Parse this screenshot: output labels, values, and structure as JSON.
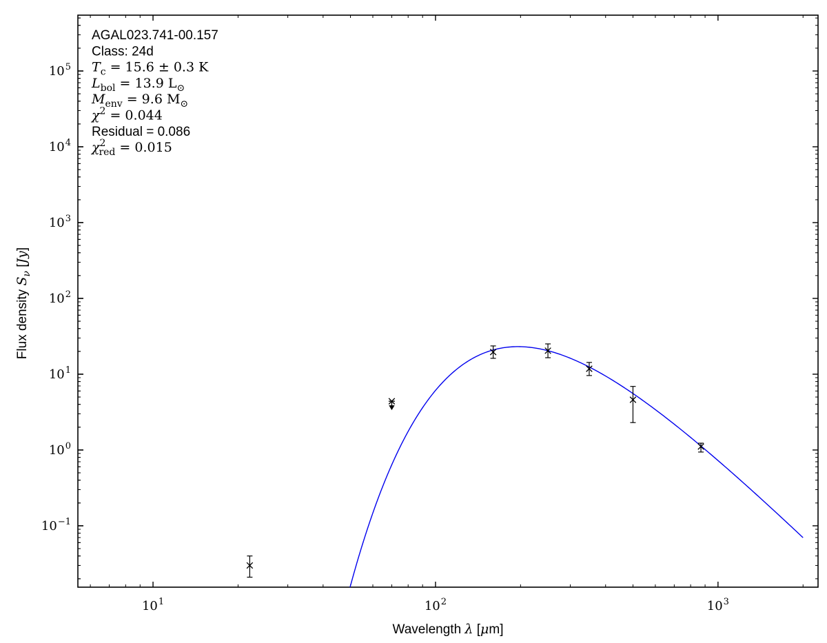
{
  "figure": {
    "background": "#ffffff",
    "source_name": "AGAL023.741-00.157",
    "class_label": "Class: 24d",
    "fit_values": {
      "T_c": "15.6 ± 0.3 K",
      "L_bol": "13.9 L⊙",
      "M_env": "9.6 M⊙",
      "chi2": "0.044",
      "residual": "0.086",
      "chi2_red": "0.015"
    }
  },
  "chart_data": {
    "type": "scatter",
    "title": "",
    "xlabel": "Wavelength λ [μm]",
    "ylabel": "Flux density Sν [Jy]",
    "x_scale": "log",
    "y_scale": "log",
    "grid": false,
    "legend": null,
    "xlim": [
      5.42,
      2260
    ],
    "ylim": [
      0.0155,
      545000
    ],
    "x_major_ticks": [
      10,
      100,
      1000
    ],
    "y_major_ticks": [
      0.1,
      1,
      10,
      100,
      1000,
      10000,
      100000
    ],
    "axis_color": "#000000",
    "data_color": "#000000",
    "series": [
      {
        "name": "photometry",
        "marker": "x",
        "color": "#000000",
        "points": [
          {
            "wavelength_um": 22,
            "flux_jy": 0.03,
            "err_plus_jy": 0.01,
            "err_minus_jy": 0.009
          },
          {
            "wavelength_um": 160,
            "flux_jy": 19.6,
            "err_plus_jy": 4.0,
            "err_minus_jy": 3.4
          },
          {
            "wavelength_um": 250,
            "flux_jy": 20.4,
            "err_plus_jy": 4.7,
            "err_minus_jy": 3.9
          },
          {
            "wavelength_um": 350,
            "flux_jy": 11.8,
            "err_plus_jy": 2.5,
            "err_minus_jy": 2.2
          },
          {
            "wavelength_um": 500,
            "flux_jy": 4.6,
            "err_plus_jy": 2.3,
            "err_minus_jy": 2.3
          },
          {
            "wavelength_um": 870,
            "flux_jy": 1.11,
            "err_plus_jy": 0.12,
            "err_minus_jy": 0.17
          }
        ]
      }
    ],
    "upper_limits": [
      {
        "wavelength_um": 70,
        "flux_jy": 4.4,
        "arrow_to_jy": 3.5
      }
    ],
    "model_curve": {
      "name": "greybody fit",
      "color": "#0000ee",
      "T_K": 15.6,
      "beta": 1.75,
      "peak_wavelength_um": 195.3,
      "peak_flux_jy": 23.1,
      "lambda_range_um": [
        40,
        2000
      ]
    },
    "annotation_lines": [
      {
        "segments": [
          {
            "k": "sans",
            "t": "AGAL023.741-00.157"
          }
        ]
      },
      {
        "segments": [
          {
            "k": "sans",
            "t": "Class: 24d"
          }
        ]
      },
      {
        "segments": [
          {
            "k": "i",
            "t": "T"
          },
          {
            "k": "sub",
            "t": "c"
          },
          {
            "k": "r",
            "t": " = 15.6 ± 0.3 K"
          }
        ]
      },
      {
        "segments": [
          {
            "k": "i",
            "t": "L"
          },
          {
            "k": "sub",
            "t": "bol"
          },
          {
            "k": "r",
            "t": " = 13.9 L"
          },
          {
            "k": "sub",
            "t": "⊙"
          }
        ]
      },
      {
        "segments": [
          {
            "k": "i",
            "t": "M"
          },
          {
            "k": "sub",
            "t": "env"
          },
          {
            "k": "r",
            "t": " = 9.6 M"
          },
          {
            "k": "sub",
            "t": "⊙"
          }
        ]
      },
      {
        "segments": [
          {
            "k": "i",
            "t": "χ"
          },
          {
            "k": "sup",
            "t": "2"
          },
          {
            "k": "r",
            "t": " = 0.044"
          }
        ]
      },
      {
        "segments": [
          {
            "k": "sans",
            "t": "Residual = 0.086"
          }
        ]
      },
      {
        "segments": [
          {
            "k": "i",
            "t": "χ"
          },
          {
            "k": "sup",
            "t": "2"
          },
          {
            "k": "subx",
            "t": "red"
          },
          {
            "k": "r",
            "t": " = 0.015"
          }
        ]
      }
    ],
    "xlabel_segments": [
      {
        "k": "sans",
        "t": "Wavelength "
      },
      {
        "k": "i",
        "t": "λ"
      },
      {
        "k": "sans",
        "t": " ["
      },
      {
        "k": "i",
        "t": "μ"
      },
      {
        "k": "sans",
        "t": "m]"
      }
    ],
    "ylabel_segments": [
      {
        "k": "sans",
        "t": "Flux density "
      },
      {
        "k": "i",
        "t": "S"
      },
      {
        "k": "subi",
        "t": "ν"
      },
      {
        "k": "sans",
        "t": " ["
      },
      {
        "k": "i",
        "t": "Jy"
      },
      {
        "k": "sans",
        "t": "]"
      }
    ]
  }
}
